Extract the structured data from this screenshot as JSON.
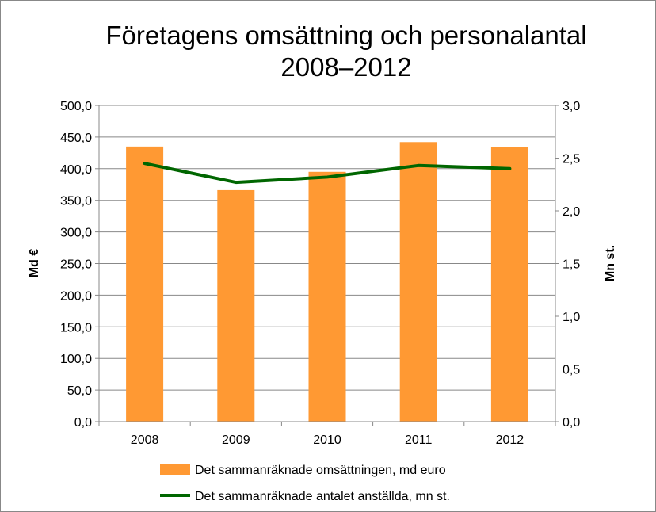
{
  "chart_data": {
    "type": "bar+line",
    "title_line1": "Företagens omsättning och personalantal",
    "title_line2": "2008–2012",
    "categories": [
      "2008",
      "2009",
      "2010",
      "2011",
      "2012"
    ],
    "series": [
      {
        "name": "Det sammanräknade omsättningen, md euro",
        "type": "bar",
        "axis": "left",
        "color": "#FF9933",
        "values": [
          435,
          366,
          395,
          442,
          434
        ]
      },
      {
        "name": "Det sammanräknade antalet anställda, mn st.",
        "type": "line",
        "axis": "right",
        "color": "#006600",
        "values": [
          2.45,
          2.27,
          2.32,
          2.43,
          2.4
        ]
      }
    ],
    "ylabel": "Md €",
    "y2label": "Mn st.",
    "ylim": [
      0,
      500
    ],
    "y2lim": [
      0,
      3
    ],
    "yticks": [
      "0,0",
      "50,0",
      "100,0",
      "150,0",
      "200,0",
      "250,0",
      "300,0",
      "350,0",
      "400,0",
      "450,0",
      "500,0"
    ],
    "y2ticks": [
      "0,0",
      "0,5",
      "1,0",
      "1,5",
      "2,0",
      "2,5",
      "3,0"
    ],
    "grid": true,
    "legend": "bottom"
  }
}
